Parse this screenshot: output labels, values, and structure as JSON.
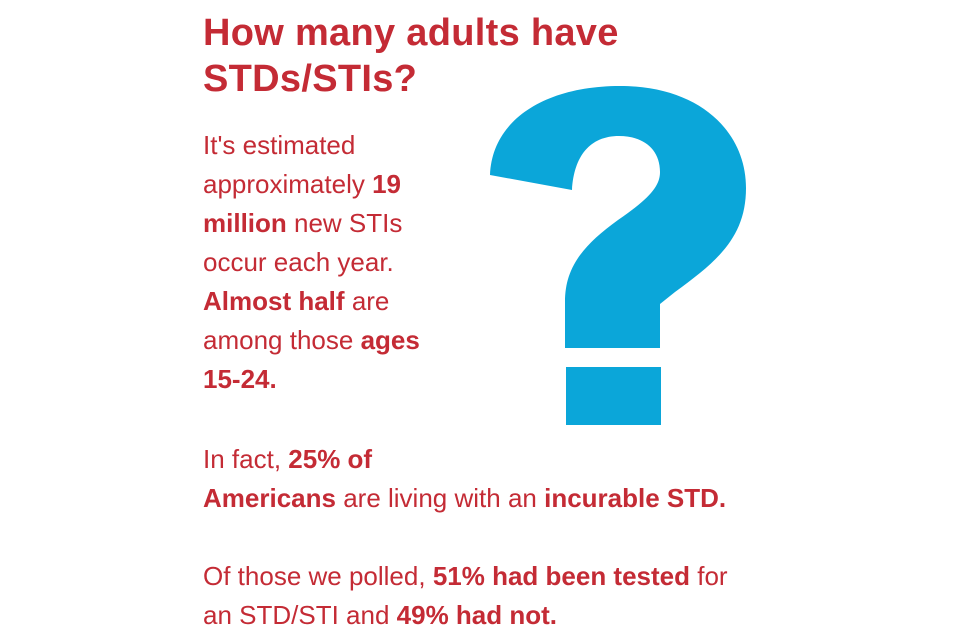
{
  "colors": {
    "text": "#c42b35",
    "question_mark": "#0ba6d9",
    "background": "#ffffff"
  },
  "title": {
    "line1": "How many adults have",
    "line2": "STDs/STIs?"
  },
  "paragraph1": {
    "t1": "It's estimated",
    "t2": "approximately",
    "b1": "19",
    "b2": "million",
    "t3": "new STIs",
    "t4": "occur each year.",
    "b3": "Almost half",
    "t5": "are",
    "t6": "among those",
    "b4": "ages",
    "b5": "15-24."
  },
  "paragraph2": {
    "t1": "In fact,",
    "b1": "25% of",
    "b2": "Americans",
    "t2": "are living with an",
    "b3": "incurable STD."
  },
  "paragraph3": {
    "t1": "Of those we polled,",
    "b1": "51% had been tested",
    "t2": "for",
    "t3": "an STD/STI and",
    "b2": "49% had not."
  },
  "graphic": {
    "icon": "question-mark-icon"
  }
}
